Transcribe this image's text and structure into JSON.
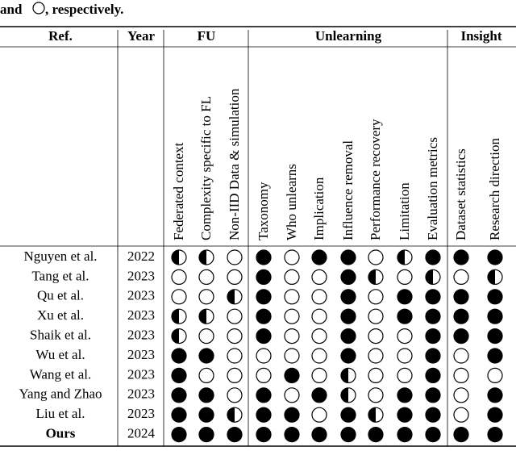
{
  "caption": {
    "before": "and",
    "after": ", respectively."
  },
  "table": {
    "groups": [
      "Ref.",
      "Year",
      "FU",
      "Unlearning",
      "Insight"
    ],
    "columns": [
      "Federated context",
      "Complexity specific to FL",
      "Non-IID Data & simulation",
      "Taxonomy",
      "Who unlearns",
      "Implication",
      "Influence removal",
      "Performance recovery",
      "Limitation",
      "Evaluation metrics",
      "Dataset statistics",
      "Research direction"
    ],
    "rows": [
      {
        "ref": "Nguyen et al.",
        "year": 2022,
        "marks": [
          0.5,
          0.5,
          0,
          1,
          0,
          1,
          1,
          0,
          0.5,
          1,
          1,
          1
        ]
      },
      {
        "ref": "Tang et al.",
        "year": 2023,
        "marks": [
          0,
          0,
          0,
          1,
          0,
          0,
          1,
          0.5,
          0,
          0.5,
          0,
          0.5
        ]
      },
      {
        "ref": "Qu et al.",
        "year": 2023,
        "marks": [
          0,
          0,
          0.5,
          1,
          0,
          0,
          1,
          0,
          1,
          1,
          1,
          1
        ]
      },
      {
        "ref": "Xu et al.",
        "year": 2023,
        "marks": [
          0.5,
          0.5,
          0,
          1,
          0,
          0,
          1,
          0,
          1,
          1,
          1,
          1
        ]
      },
      {
        "ref": "Shaik et al.",
        "year": 2023,
        "marks": [
          0.5,
          0,
          0,
          1,
          0,
          0,
          1,
          0,
          0,
          1,
          1,
          1
        ]
      },
      {
        "ref": "Wu et al.",
        "year": 2023,
        "marks": [
          1,
          1,
          0,
          0,
          0,
          0,
          1,
          0,
          0,
          1,
          0,
          1
        ]
      },
      {
        "ref": "Wang et al.",
        "year": 2023,
        "marks": [
          1,
          0,
          0,
          0,
          1,
          0,
          0.5,
          0,
          0,
          1,
          0,
          0
        ]
      },
      {
        "ref": "Yang and Zhao",
        "year": 2023,
        "marks": [
          1,
          1,
          0,
          1,
          0,
          1,
          0.5,
          0,
          1,
          1,
          0,
          1
        ]
      },
      {
        "ref": "Liu et al.",
        "year": 2023,
        "marks": [
          1,
          1,
          0.5,
          1,
          1,
          0,
          1,
          0.5,
          1,
          1,
          0,
          1
        ]
      },
      {
        "ref": "Ours",
        "year": 2024,
        "marks": [
          1,
          1,
          1,
          1,
          1,
          1,
          1,
          1,
          1,
          1,
          1,
          1
        ]
      }
    ]
  }
}
